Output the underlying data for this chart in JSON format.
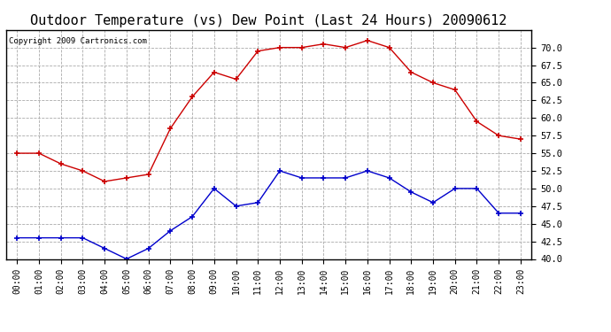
{
  "title": "Outdoor Temperature (vs) Dew Point (Last 24 Hours) 20090612",
  "copyright_text": "Copyright 2009 Cartronics.com",
  "hours": [
    "00:00",
    "01:00",
    "02:00",
    "03:00",
    "04:00",
    "05:00",
    "06:00",
    "07:00",
    "08:00",
    "09:00",
    "10:00",
    "11:00",
    "12:00",
    "13:00",
    "14:00",
    "15:00",
    "16:00",
    "17:00",
    "18:00",
    "19:00",
    "20:00",
    "21:00",
    "22:00",
    "23:00"
  ],
  "temp": [
    55.0,
    55.0,
    53.5,
    52.5,
    51.0,
    51.5,
    52.0,
    58.5,
    63.0,
    66.5,
    65.5,
    69.5,
    70.0,
    70.0,
    70.5,
    70.0,
    71.0,
    70.0,
    66.5,
    65.0,
    64.0,
    59.5,
    57.5,
    57.0
  ],
  "dewpoint": [
    43.0,
    43.0,
    43.0,
    43.0,
    41.5,
    40.0,
    41.5,
    44.0,
    46.0,
    50.0,
    47.5,
    48.0,
    52.5,
    51.5,
    51.5,
    51.5,
    52.5,
    51.5,
    49.5,
    48.0,
    50.0,
    50.0,
    46.5,
    46.5
  ],
  "temp_color": "#cc0000",
  "dewpoint_color": "#0000cc",
  "ylim_min": 40.0,
  "ylim_max": 72.5,
  "yticks": [
    40.0,
    42.5,
    45.0,
    47.5,
    50.0,
    52.5,
    55.0,
    57.5,
    60.0,
    62.5,
    65.0,
    67.5,
    70.0
  ],
  "bg_color": "#ffffff",
  "grid_color": "#aaaaaa",
  "title_fontsize": 11,
  "copyright_fontsize": 6.5,
  "tick_fontsize": 7,
  "ytick_fontsize": 7.5
}
